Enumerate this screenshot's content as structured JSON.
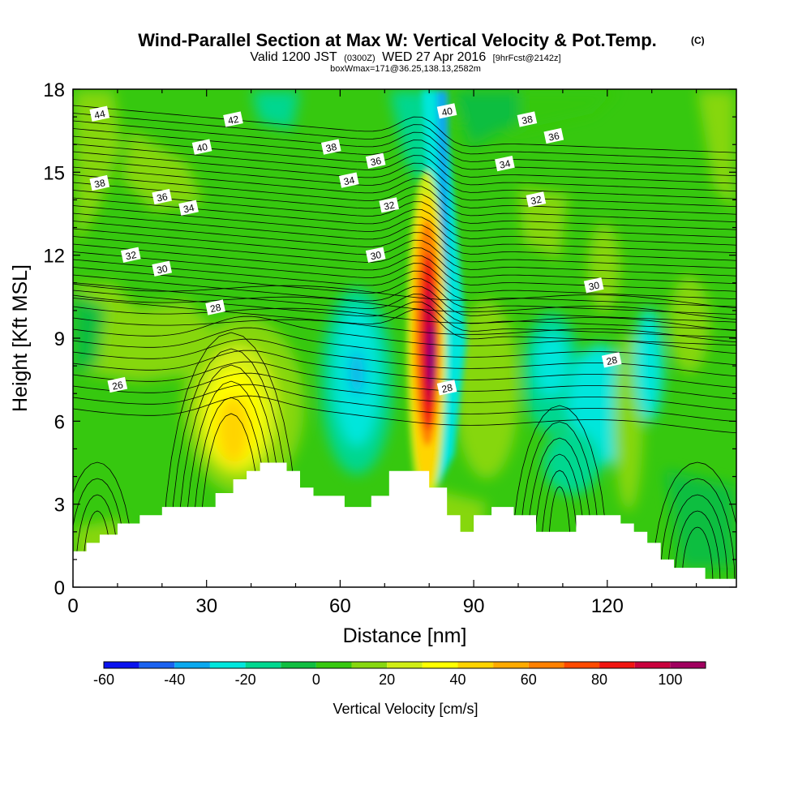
{
  "header": {
    "title": "Wind-Parallel Section at Max W: Vertical Velocity & Pot.Temp.",
    "title_mark": "(C)",
    "sub_a": "Valid 1200 JST",
    "sub_b": "(0300Z)",
    "sub_c": "WED 27 Apr 2016",
    "sub_d": "[9hrFcst@2142z]",
    "sub_line3": "boxWmax=171@36.25,138.13,2582m"
  },
  "chart_data": {
    "type": "heatmap",
    "xlabel": "Distance [nm]",
    "ylabel": "Height [Kft MSL]",
    "xlim": [
      0,
      149
    ],
    "ylim": [
      0,
      18
    ],
    "x_ticks": [
      "0",
      "30",
      "60",
      "90",
      "120"
    ],
    "y_ticks": [
      "0",
      "3",
      "6",
      "9",
      "12",
      "15",
      "18"
    ],
    "x_tick_values": [
      0,
      30,
      60,
      90,
      120
    ],
    "y_tick_values": [
      0,
      3,
      6,
      9,
      12,
      15,
      18
    ],
    "colorbar": {
      "title": "Vertical Velocity [cm/s]",
      "labels": [
        "-60",
        "-40",
        "-20",
        "0",
        "20",
        "40",
        "60",
        "80",
        "100"
      ],
      "label_values": [
        -60,
        -40,
        -20,
        0,
        20,
        40,
        60,
        80,
        100
      ],
      "edges": [
        -60,
        -50,
        -40,
        -30,
        -20,
        -10,
        0,
        10,
        20,
        30,
        40,
        50,
        60,
        70,
        80,
        90,
        100,
        110
      ],
      "colors": [
        "#0a12ee",
        "#1a62f0",
        "#0aa8ee",
        "#00e6dc",
        "#00d78f",
        "#10be40",
        "#36c80f",
        "#86d70f",
        "#d0ed14",
        "#ffff00",
        "#ffd400",
        "#ffaa00",
        "#ff8000",
        "#ff4a00",
        "#f01410",
        "#c8003c",
        "#a0005f",
        "#6e0082"
      ]
    },
    "terrain": [
      [
        0,
        1.3
      ],
      [
        3,
        1.3
      ],
      [
        3,
        1.6
      ],
      [
        6,
        1.6
      ],
      [
        6,
        1.9
      ],
      [
        10,
        1.9
      ],
      [
        10,
        2.3
      ],
      [
        15,
        2.3
      ],
      [
        15,
        2.6
      ],
      [
        20,
        2.6
      ],
      [
        20,
        2.9
      ],
      [
        32,
        2.9
      ],
      [
        32,
        3.4
      ],
      [
        36,
        3.4
      ],
      [
        36,
        3.9
      ],
      [
        39,
        3.9
      ],
      [
        39,
        4.2
      ],
      [
        42,
        4.2
      ],
      [
        42,
        4.5
      ],
      [
        48,
        4.5
      ],
      [
        48,
        4.2
      ],
      [
        51,
        4.2
      ],
      [
        51,
        3.6
      ],
      [
        54,
        3.6
      ],
      [
        54,
        3.3
      ],
      [
        61,
        3.3
      ],
      [
        61,
        2.9
      ],
      [
        67,
        2.9
      ],
      [
        67,
        3.3
      ],
      [
        71,
        3.3
      ],
      [
        71,
        4.2
      ],
      [
        80,
        4.2
      ],
      [
        80,
        3.6
      ],
      [
        84,
        3.6
      ],
      [
        84,
        2.6
      ],
      [
        87,
        2.6
      ],
      [
        87,
        2.0
      ],
      [
        90,
        2.0
      ],
      [
        90,
        2.6
      ],
      [
        94,
        2.6
      ],
      [
        94,
        2.9
      ],
      [
        99,
        2.9
      ],
      [
        99,
        2.6
      ],
      [
        104,
        2.6
      ],
      [
        104,
        2.0
      ],
      [
        113,
        2.0
      ],
      [
        113,
        2.6
      ],
      [
        123,
        2.6
      ],
      [
        123,
        2.3
      ],
      [
        126,
        2.3
      ],
      [
        126,
        2.0
      ],
      [
        129,
        2.0
      ],
      [
        129,
        1.6
      ],
      [
        132,
        1.6
      ],
      [
        132,
        1.0
      ],
      [
        135,
        1.0
      ],
      [
        135,
        0.7
      ],
      [
        142,
        0.7
      ],
      [
        142,
        0.3
      ],
      [
        149,
        0.3
      ]
    ],
    "theta_contours": [
      {
        "label": "26",
        "label_x": 10,
        "label_y": 7.3
      },
      {
        "label": "28",
        "label_x": 32,
        "label_y": 10.1
      },
      {
        "label": "30",
        "label_x": 20,
        "label_y": 11.5
      },
      {
        "label": "30",
        "label_x": 68,
        "label_y": 12.0
      },
      {
        "label": "30",
        "label_x": 117,
        "label_y": 10.9
      },
      {
        "label": "32",
        "label_x": 13,
        "label_y": 12.0
      },
      {
        "label": "32",
        "label_x": 71,
        "label_y": 13.8
      },
      {
        "label": "32",
        "label_x": 104,
        "label_y": 14.0
      },
      {
        "label": "34",
        "label_x": 26,
        "label_y": 13.7
      },
      {
        "label": "34",
        "label_x": 62,
        "label_y": 14.7
      },
      {
        "label": "34",
        "label_x": 97,
        "label_y": 15.3
      },
      {
        "label": "36",
        "label_x": 20,
        "label_y": 14.1
      },
      {
        "label": "36",
        "label_x": 68,
        "label_y": 15.4
      },
      {
        "label": "36",
        "label_x": 108,
        "label_y": 16.3
      },
      {
        "label": "38",
        "label_x": 6,
        "label_y": 14.6
      },
      {
        "label": "38",
        "label_x": 58,
        "label_y": 15.9
      },
      {
        "label": "38",
        "label_x": 102,
        "label_y": 16.9
      },
      {
        "label": "40",
        "label_x": 29,
        "label_y": 15.9
      },
      {
        "label": "40",
        "label_x": 84,
        "label_y": 17.2
      },
      {
        "label": "42",
        "label_x": 36,
        "label_y": 16.9
      },
      {
        "label": "44",
        "label_x": 6,
        "label_y": 17.1
      }
    ],
    "theta_sample_labels": [
      {
        "label": "28",
        "label_x": 84,
        "label_y": 7.2
      },
      {
        "label": "28",
        "label_x": 121,
        "label_y": 8.2
      }
    ]
  }
}
